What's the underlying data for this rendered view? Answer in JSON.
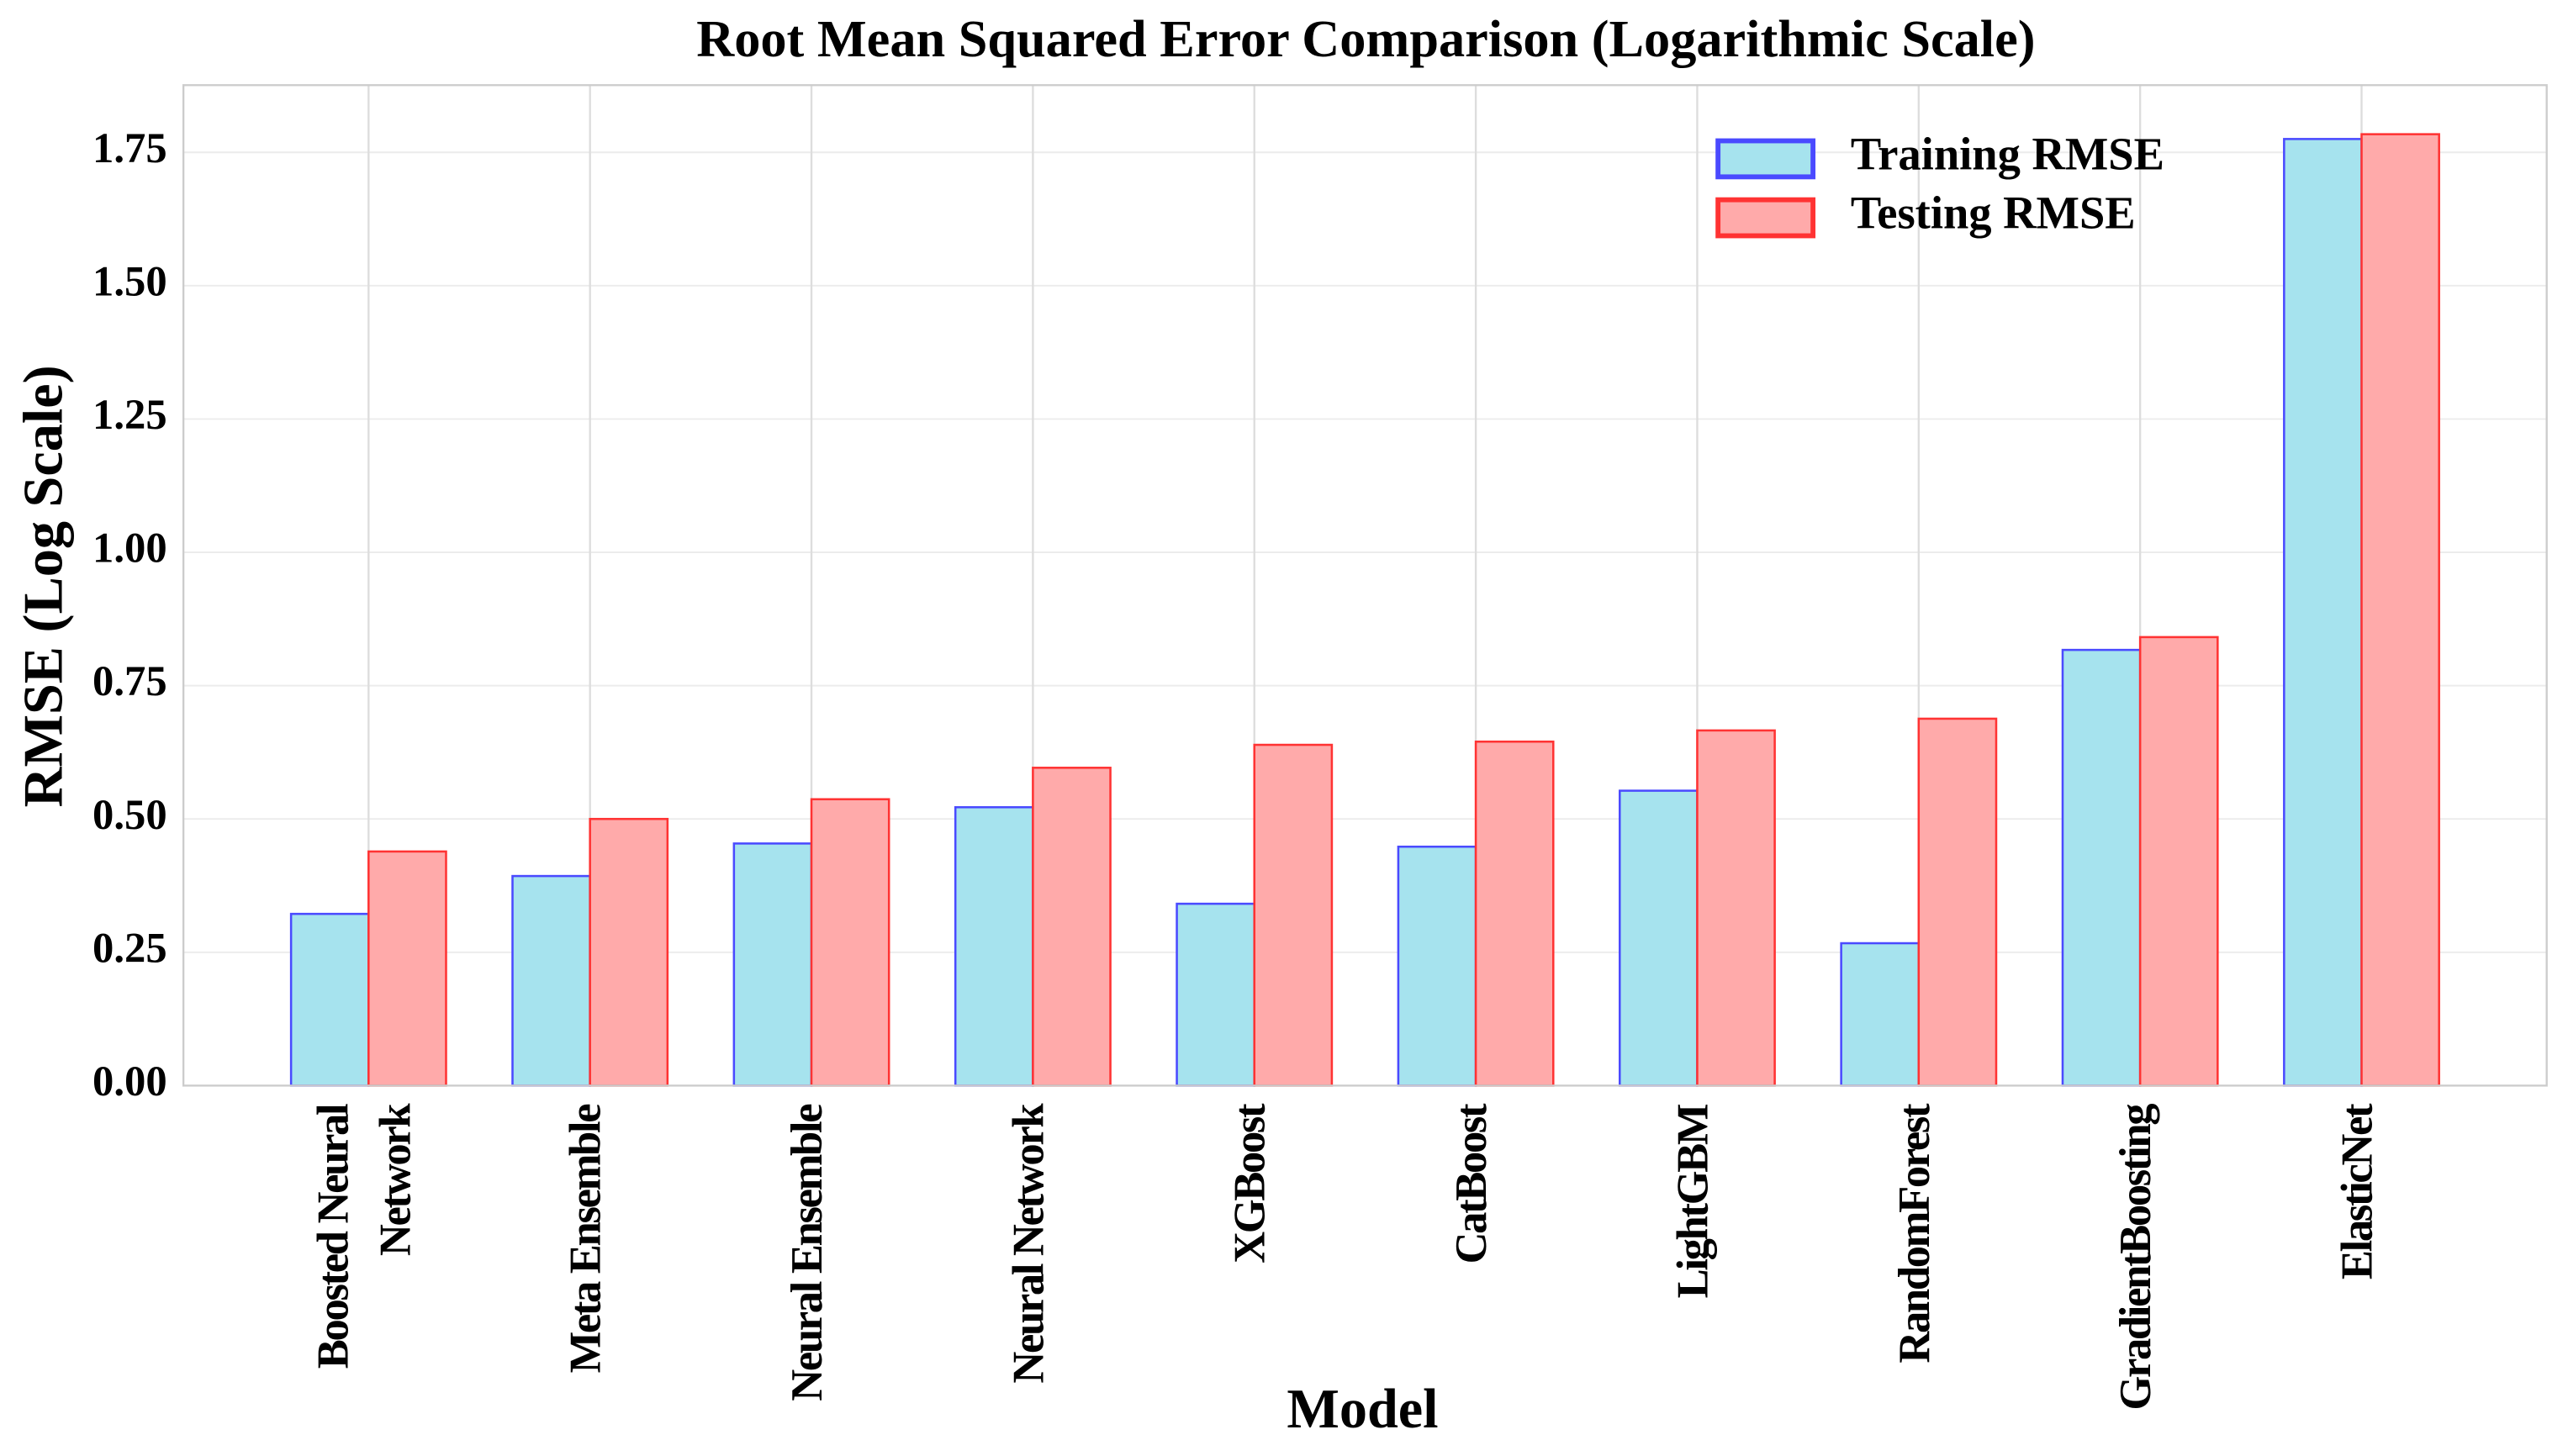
{
  "chart_data": {
    "type": "bar",
    "title": "Root Mean Squared Error Comparison (Logarithmic Scale)",
    "x_label": "Model",
    "y_label": "RMSE (Log Scale)",
    "categories": [
      "Boosted Neural\nNetwork",
      "Meta Ensemble",
      "Neural Ensemble",
      "Neural Network",
      "XGBoost",
      "CatBoost",
      "LightGBM",
      "RandomForest",
      "GradientBoosting",
      "ElasticNet"
    ],
    "series": [
      {
        "name": "Training RMSE",
        "color": "#a6e3ee",
        "edgecolor": "#4a4aff",
        "values": [
          0.322,
          0.393,
          0.454,
          0.522,
          0.341,
          0.448,
          0.553,
          0.267,
          0.817,
          1.775
        ]
      },
      {
        "name": "Testing RMSE",
        "color": "#ffaaaa",
        "edgecolor": "#ff3333",
        "values": [
          0.439,
          0.5,
          0.537,
          0.596,
          0.639,
          0.645,
          0.666,
          0.688,
          0.841,
          1.784
        ]
      }
    ],
    "ylim": [
      0,
      1.876
    ],
    "yticks": [
      {
        "value": 0,
        "label": "0.00"
      },
      0.25,
      {
        "value": 0.5,
        "label": "0.50"
      },
      0.75,
      {
        "value": 1,
        "label": "1.00"
      },
      1.25,
      {
        "value": 1.5,
        "label": "1.50"
      },
      1.75
    ],
    "grid": true,
    "legend": "upper right"
  }
}
